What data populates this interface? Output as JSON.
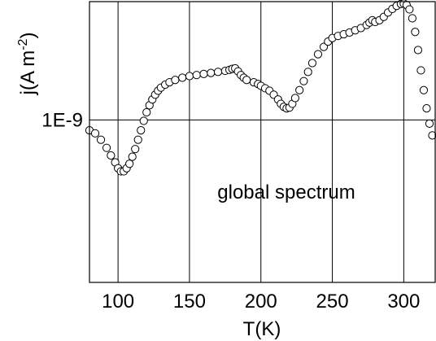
{
  "chart_data": {
    "type": "scatter",
    "xlabel": "T(K)",
    "ylabel_main": "j(A m",
    "ylabel_sup": "-2",
    "ylabel_close": ")",
    "yscale": "log",
    "xlim": [
      80,
      322
    ],
    "ylim": [
      1.6e-10,
      3.8e-09
    ],
    "x_ticks": [
      100,
      150,
      200,
      250,
      300
    ],
    "x_tick_labels": [
      "100",
      "150",
      "200",
      "250",
      "300"
    ],
    "y_ticks": [
      1e-09
    ],
    "y_tick_labels": [
      "1E-9"
    ],
    "grid": true,
    "annotation": "global spectrum",
    "marker": "open-circle",
    "series": [
      {
        "x": [
          80,
          84,
          88,
          92,
          95,
          98,
          100,
          102,
          104,
          106,
          108,
          110,
          112,
          114,
          116,
          118,
          120,
          122,
          124,
          126,
          128,
          130,
          133,
          136,
          140,
          145,
          150,
          155,
          160,
          165,
          170,
          175,
          178,
          180,
          182,
          184,
          186,
          188,
          190,
          195,
          198,
          200,
          203,
          206,
          209,
          212,
          214,
          216,
          218,
          220,
          222,
          224,
          227,
          230,
          233,
          236,
          240,
          244,
          247,
          250,
          254,
          258,
          262,
          266,
          270,
          274,
          276,
          278,
          280,
          283,
          286,
          289,
          292,
          295,
          298,
          300,
          302,
          304,
          306,
          308,
          310,
          312,
          314,
          316,
          318,
          320
        ],
        "y": [
          8.9e-10,
          8.6e-10,
          8e-10,
          7.3e-10,
          6.7e-10,
          6.2e-10,
          5.8e-10,
          5.6e-10,
          5.6e-10,
          5.8e-10,
          6.1e-10,
          6.6e-10,
          7.2e-10,
          8e-10,
          8.9e-10,
          9.9e-10,
          1.09e-09,
          1.18e-09,
          1.26e-09,
          1.33e-09,
          1.39e-09,
          1.44e-09,
          1.49e-09,
          1.53e-09,
          1.57e-09,
          1.61e-09,
          1.64e-09,
          1.66e-09,
          1.68e-09,
          1.7e-09,
          1.72e-09,
          1.74e-09,
          1.76e-09,
          1.78e-09,
          1.79e-09,
          1.73e-09,
          1.66e-09,
          1.61e-09,
          1.57e-09,
          1.53e-09,
          1.5e-09,
          1.47e-09,
          1.43e-09,
          1.39e-09,
          1.33e-09,
          1.26e-09,
          1.2e-09,
          1.16e-09,
          1.14e-09,
          1.15e-09,
          1.2e-09,
          1.28e-09,
          1.4e-09,
          1.55e-09,
          1.72e-09,
          1.9e-09,
          2.1e-09,
          2.28e-09,
          2.42e-09,
          2.52e-09,
          2.58e-09,
          2.63e-09,
          2.68e-09,
          2.75e-09,
          2.82e-09,
          2.92e-09,
          3e-09,
          3.08e-09,
          3.02e-09,
          3.08e-09,
          3.2e-09,
          3.36e-09,
          3.5e-09,
          3.62e-09,
          3.7e-09,
          3.72e-09,
          3.66e-09,
          3.48e-09,
          3.15e-09,
          2.7e-09,
          2.2e-09,
          1.75e-09,
          1.4e-09,
          1.14e-09,
          9.6e-10,
          8.4e-10
        ]
      }
    ]
  }
}
